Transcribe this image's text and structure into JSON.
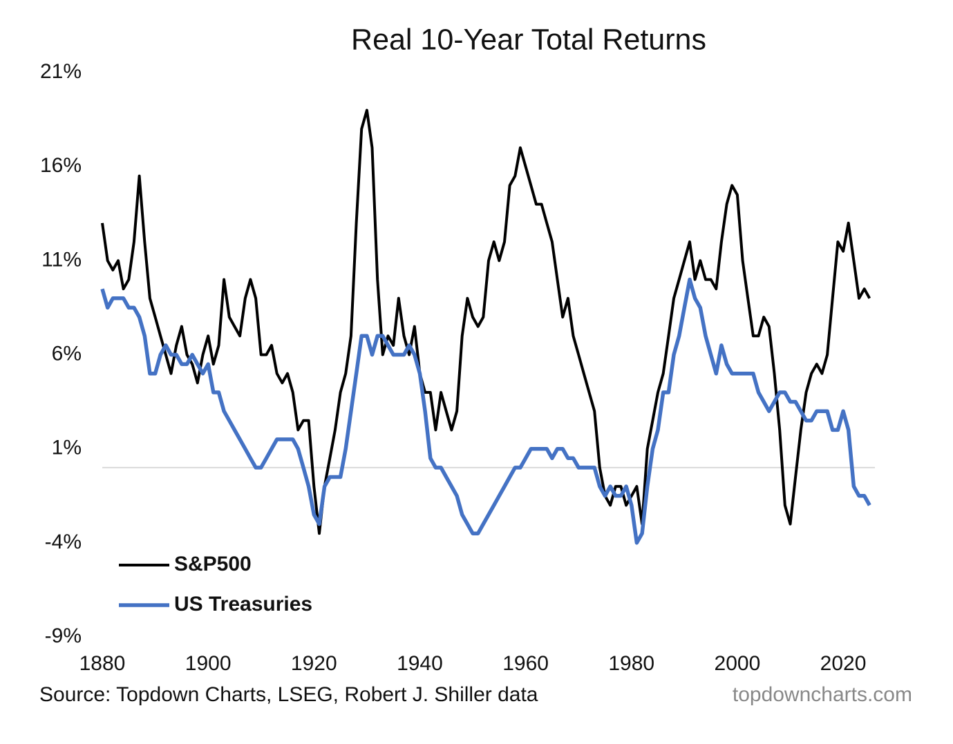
{
  "chart_data": {
    "type": "line",
    "title": "Real 10-Year Total Returns",
    "source": "Source: Topdown Charts, LSEG, Robert J. Shiller data",
    "watermark": "topdowncharts.com",
    "x": [
      1880,
      1881,
      1882,
      1883,
      1884,
      1885,
      1886,
      1887,
      1888,
      1889,
      1890,
      1891,
      1892,
      1893,
      1894,
      1895,
      1896,
      1897,
      1898,
      1899,
      1900,
      1901,
      1902,
      1903,
      1904,
      1905,
      1906,
      1907,
      1908,
      1909,
      1910,
      1911,
      1912,
      1913,
      1914,
      1915,
      1916,
      1917,
      1918,
      1919,
      1920,
      1921,
      1922,
      1923,
      1924,
      1925,
      1926,
      1927,
      1928,
      1929,
      1930,
      1931,
      1932,
      1933,
      1934,
      1935,
      1936,
      1937,
      1938,
      1939,
      1940,
      1941,
      1942,
      1943,
      1944,
      1945,
      1946,
      1947,
      1948,
      1949,
      1950,
      1951,
      1952,
      1953,
      1954,
      1955,
      1956,
      1957,
      1958,
      1959,
      1960,
      1961,
      1962,
      1963,
      1964,
      1965,
      1966,
      1967,
      1968,
      1969,
      1970,
      1971,
      1972,
      1973,
      1974,
      1975,
      1976,
      1977,
      1978,
      1979,
      1980,
      1981,
      1982,
      1983,
      1984,
      1985,
      1986,
      1987,
      1988,
      1989,
      1990,
      1991,
      1992,
      1993,
      1994,
      1995,
      1996,
      1997,
      1998,
      1999,
      2000,
      2001,
      2002,
      2003,
      2004,
      2005,
      2006,
      2007,
      2008,
      2009,
      2010,
      2011,
      2012,
      2013,
      2014,
      2015,
      2016,
      2017,
      2018,
      2019,
      2020,
      2021,
      2022,
      2023,
      2024,
      2025
    ],
    "series": [
      {
        "name": "S&P500",
        "color": "#000000",
        "width": 4,
        "values": [
          13,
          11,
          10.5,
          11,
          9.5,
          10,
          12,
          15.5,
          12,
          9,
          8,
          7,
          6,
          5,
          6.5,
          7.5,
          6,
          5.5,
          4.5,
          6,
          7,
          5.5,
          6.5,
          10,
          8,
          7.5,
          7,
          9,
          10,
          9,
          6,
          6,
          6.5,
          5,
          4.5,
          5,
          4,
          2,
          2.5,
          2.5,
          -1,
          -3.5,
          -1,
          0.5,
          2,
          4,
          5,
          7,
          13,
          18,
          19,
          17,
          10,
          6,
          7,
          6.5,
          9,
          7,
          6,
          7.5,
          5,
          4,
          4,
          2,
          4,
          3,
          2,
          3,
          7,
          9,
          8,
          7.5,
          8,
          11,
          12,
          11,
          12,
          15,
          15.5,
          17,
          16,
          15,
          14,
          14,
          13,
          12,
          10,
          8,
          9,
          7,
          6,
          5,
          4,
          3,
          0,
          -1.5,
          -2,
          -1,
          -1,
          -2,
          -1.5,
          -1,
          -3,
          1,
          2.5,
          4,
          5,
          7,
          9,
          10,
          11,
          12,
          10,
          11,
          10,
          10,
          9.5,
          12,
          14,
          15,
          14.5,
          11,
          9,
          7,
          7,
          8,
          7.5,
          5,
          2,
          -2,
          -3,
          -0.5,
          2,
          4,
          5,
          5.5,
          5,
          6,
          9,
          12,
          11.5,
          13,
          11,
          9,
          9.5,
          9
        ]
      },
      {
        "name": "US Treasuries",
        "color": "#4472c4",
        "width": 5.5,
        "values": [
          9.5,
          8.5,
          9,
          9,
          9,
          8.5,
          8.5,
          8,
          7,
          5,
          5,
          6,
          6.5,
          6,
          6,
          5.5,
          5.5,
          6,
          5.5,
          5,
          5.5,
          4,
          4,
          3,
          2.5,
          2,
          1.5,
          1,
          0.5,
          0,
          0,
          0.5,
          1,
          1.5,
          1.5,
          1.5,
          1.5,
          1,
          0,
          -1,
          -2.5,
          -3,
          -1,
          -0.5,
          -0.5,
          -0.5,
          1,
          3,
          5,
          7,
          7,
          6,
          7,
          7,
          6.5,
          6,
          6,
          6,
          6.5,
          6,
          5,
          3,
          0.5,
          0,
          0,
          -0.5,
          -1,
          -1.5,
          -2.5,
          -3,
          -3.5,
          -3.5,
          -3,
          -2.5,
          -2,
          -1.5,
          -1,
          -0.5,
          0,
          0,
          0.5,
          1,
          1,
          1,
          1,
          0.5,
          1,
          1,
          0.5,
          0.5,
          0,
          0,
          0,
          0,
          -1,
          -1.5,
          -1,
          -1.5,
          -1.5,
          -1,
          -2,
          -4,
          -3.5,
          -1,
          1,
          2,
          4,
          4,
          6,
          7,
          8.5,
          10,
          9,
          8.5,
          7,
          6,
          5,
          6.5,
          5.5,
          5,
          5,
          5,
          5,
          5,
          4,
          3.5,
          3,
          3.5,
          4,
          4,
          3.5,
          3.5,
          3,
          2.5,
          2.5,
          3,
          3,
          3,
          2,
          2,
          3,
          2,
          -1,
          -1.5,
          -1.5,
          -2
        ]
      }
    ],
    "xlim": [
      1880,
      2026
    ],
    "ylim": [
      -9,
      21
    ],
    "xticks": [
      1880,
      1900,
      1920,
      1940,
      1960,
      1980,
      2000,
      2020
    ],
    "yticks": [
      {
        "value": 21,
        "label": "21%"
      },
      {
        "value": 16,
        "label": "16%"
      },
      {
        "value": 11,
        "label": "11%"
      },
      {
        "value": 6,
        "label": "6%"
      },
      {
        "value": 1,
        "label": "1%"
      },
      {
        "value": -4,
        "label": "-4%"
      },
      {
        "value": -9,
        "label": "-9%"
      }
    ],
    "hlines": [
      0
    ],
    "hline_color": "#d9d9d9",
    "legend": "lower left"
  }
}
